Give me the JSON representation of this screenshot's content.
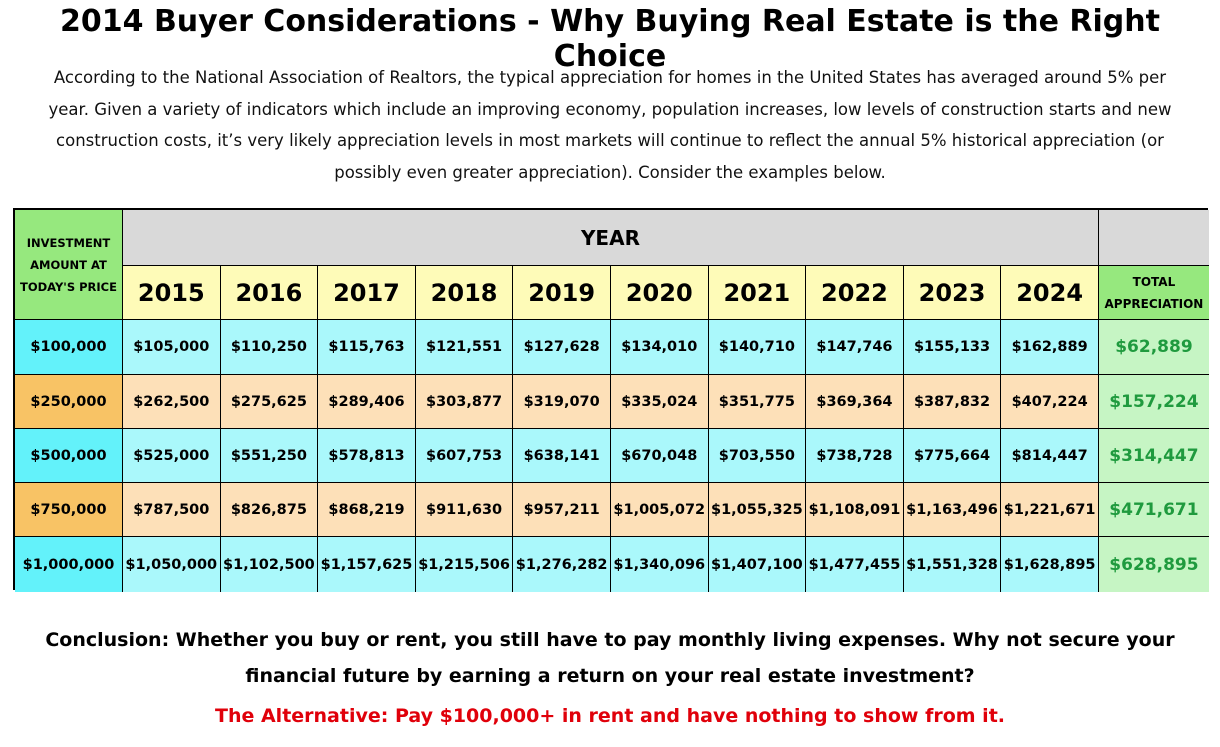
{
  "title": "2014 Buyer Considerations - Why Buying Real Estate is the Right Choice",
  "intro": "According to the National Association of Realtors, the typical appreciation for homes in the United States has averaged around 5% per year. Given a variety of indicators which include an improving economy, population increases, low levels of construction starts and new construction costs, it’s very likely appreciation levels in most markets will continue to reflect the annual 5% historical appreciation (or possibly even greater appreciation). Consider the examples below.",
  "table": {
    "corner_label": "INVESTMENT AMOUNT AT TODAY'S PRICE",
    "year_header": "YEAR",
    "total_header": "TOTAL APPRECIATION",
    "years": [
      "2015",
      "2016",
      "2017",
      "2018",
      "2019",
      "2020",
      "2021",
      "2022",
      "2023",
      "2024"
    ],
    "rows": [
      {
        "amount": "$100,000",
        "values": [
          "$105,000",
          "$110,250",
          "$115,763",
          "$121,551",
          "$127,628",
          "$134,010",
          "$140,710",
          "$147,746",
          "$155,133",
          "$162,889"
        ],
        "total": "$62,889",
        "tone": "cyan"
      },
      {
        "amount": "$250,000",
        "values": [
          "$262,500",
          "$275,625",
          "$289,406",
          "$303,877",
          "$319,070",
          "$335,024",
          "$351,775",
          "$369,364",
          "$387,832",
          "$407,224"
        ],
        "total": "$157,224",
        "tone": "orange"
      },
      {
        "amount": "$500,000",
        "values": [
          "$525,000",
          "$551,250",
          "$578,813",
          "$607,753",
          "$638,141",
          "$670,048",
          "$703,550",
          "$738,728",
          "$775,664",
          "$814,447"
        ],
        "total": "$314,447",
        "tone": "cyan"
      },
      {
        "amount": "$750,000",
        "values": [
          "$787,500",
          "$826,875",
          "$868,219",
          "$911,630",
          "$957,211",
          "$1,005,072",
          "$1,055,325",
          "$1,108,091",
          "$1,163,496",
          "$1,221,671"
        ],
        "total": "$471,671",
        "tone": "orange"
      },
      {
        "amount": "$1,000,000",
        "values": [
          "$1,050,000",
          "$1,102,500",
          "$1,157,625",
          "$1,215,506",
          "$1,276,282",
          "$1,340,096",
          "$1,407,100",
          "$1,477,455",
          "$1,551,328",
          "$1,628,895"
        ],
        "total": "$628,895",
        "tone": "cyan"
      }
    ]
  },
  "conclusion": "Conclusion: Whether you buy or rent, you still have to pay monthly living expenses. Why not secure your financial future by earning a return on your real estate investment?",
  "alternative": "The Alternative: Pay $100,000+ in rent and have nothing to show from it.",
  "colors": {
    "corner_green": "#96e87e",
    "year_yellow": "#fefbb8",
    "cyan_label": "#63f2fa",
    "cyan_cell": "#aaf8fb",
    "orange_label": "#f8c365",
    "orange_cell": "#fde0b8",
    "total_green_text": "#1f9a3e",
    "alternative_red": "#e0000a"
  }
}
